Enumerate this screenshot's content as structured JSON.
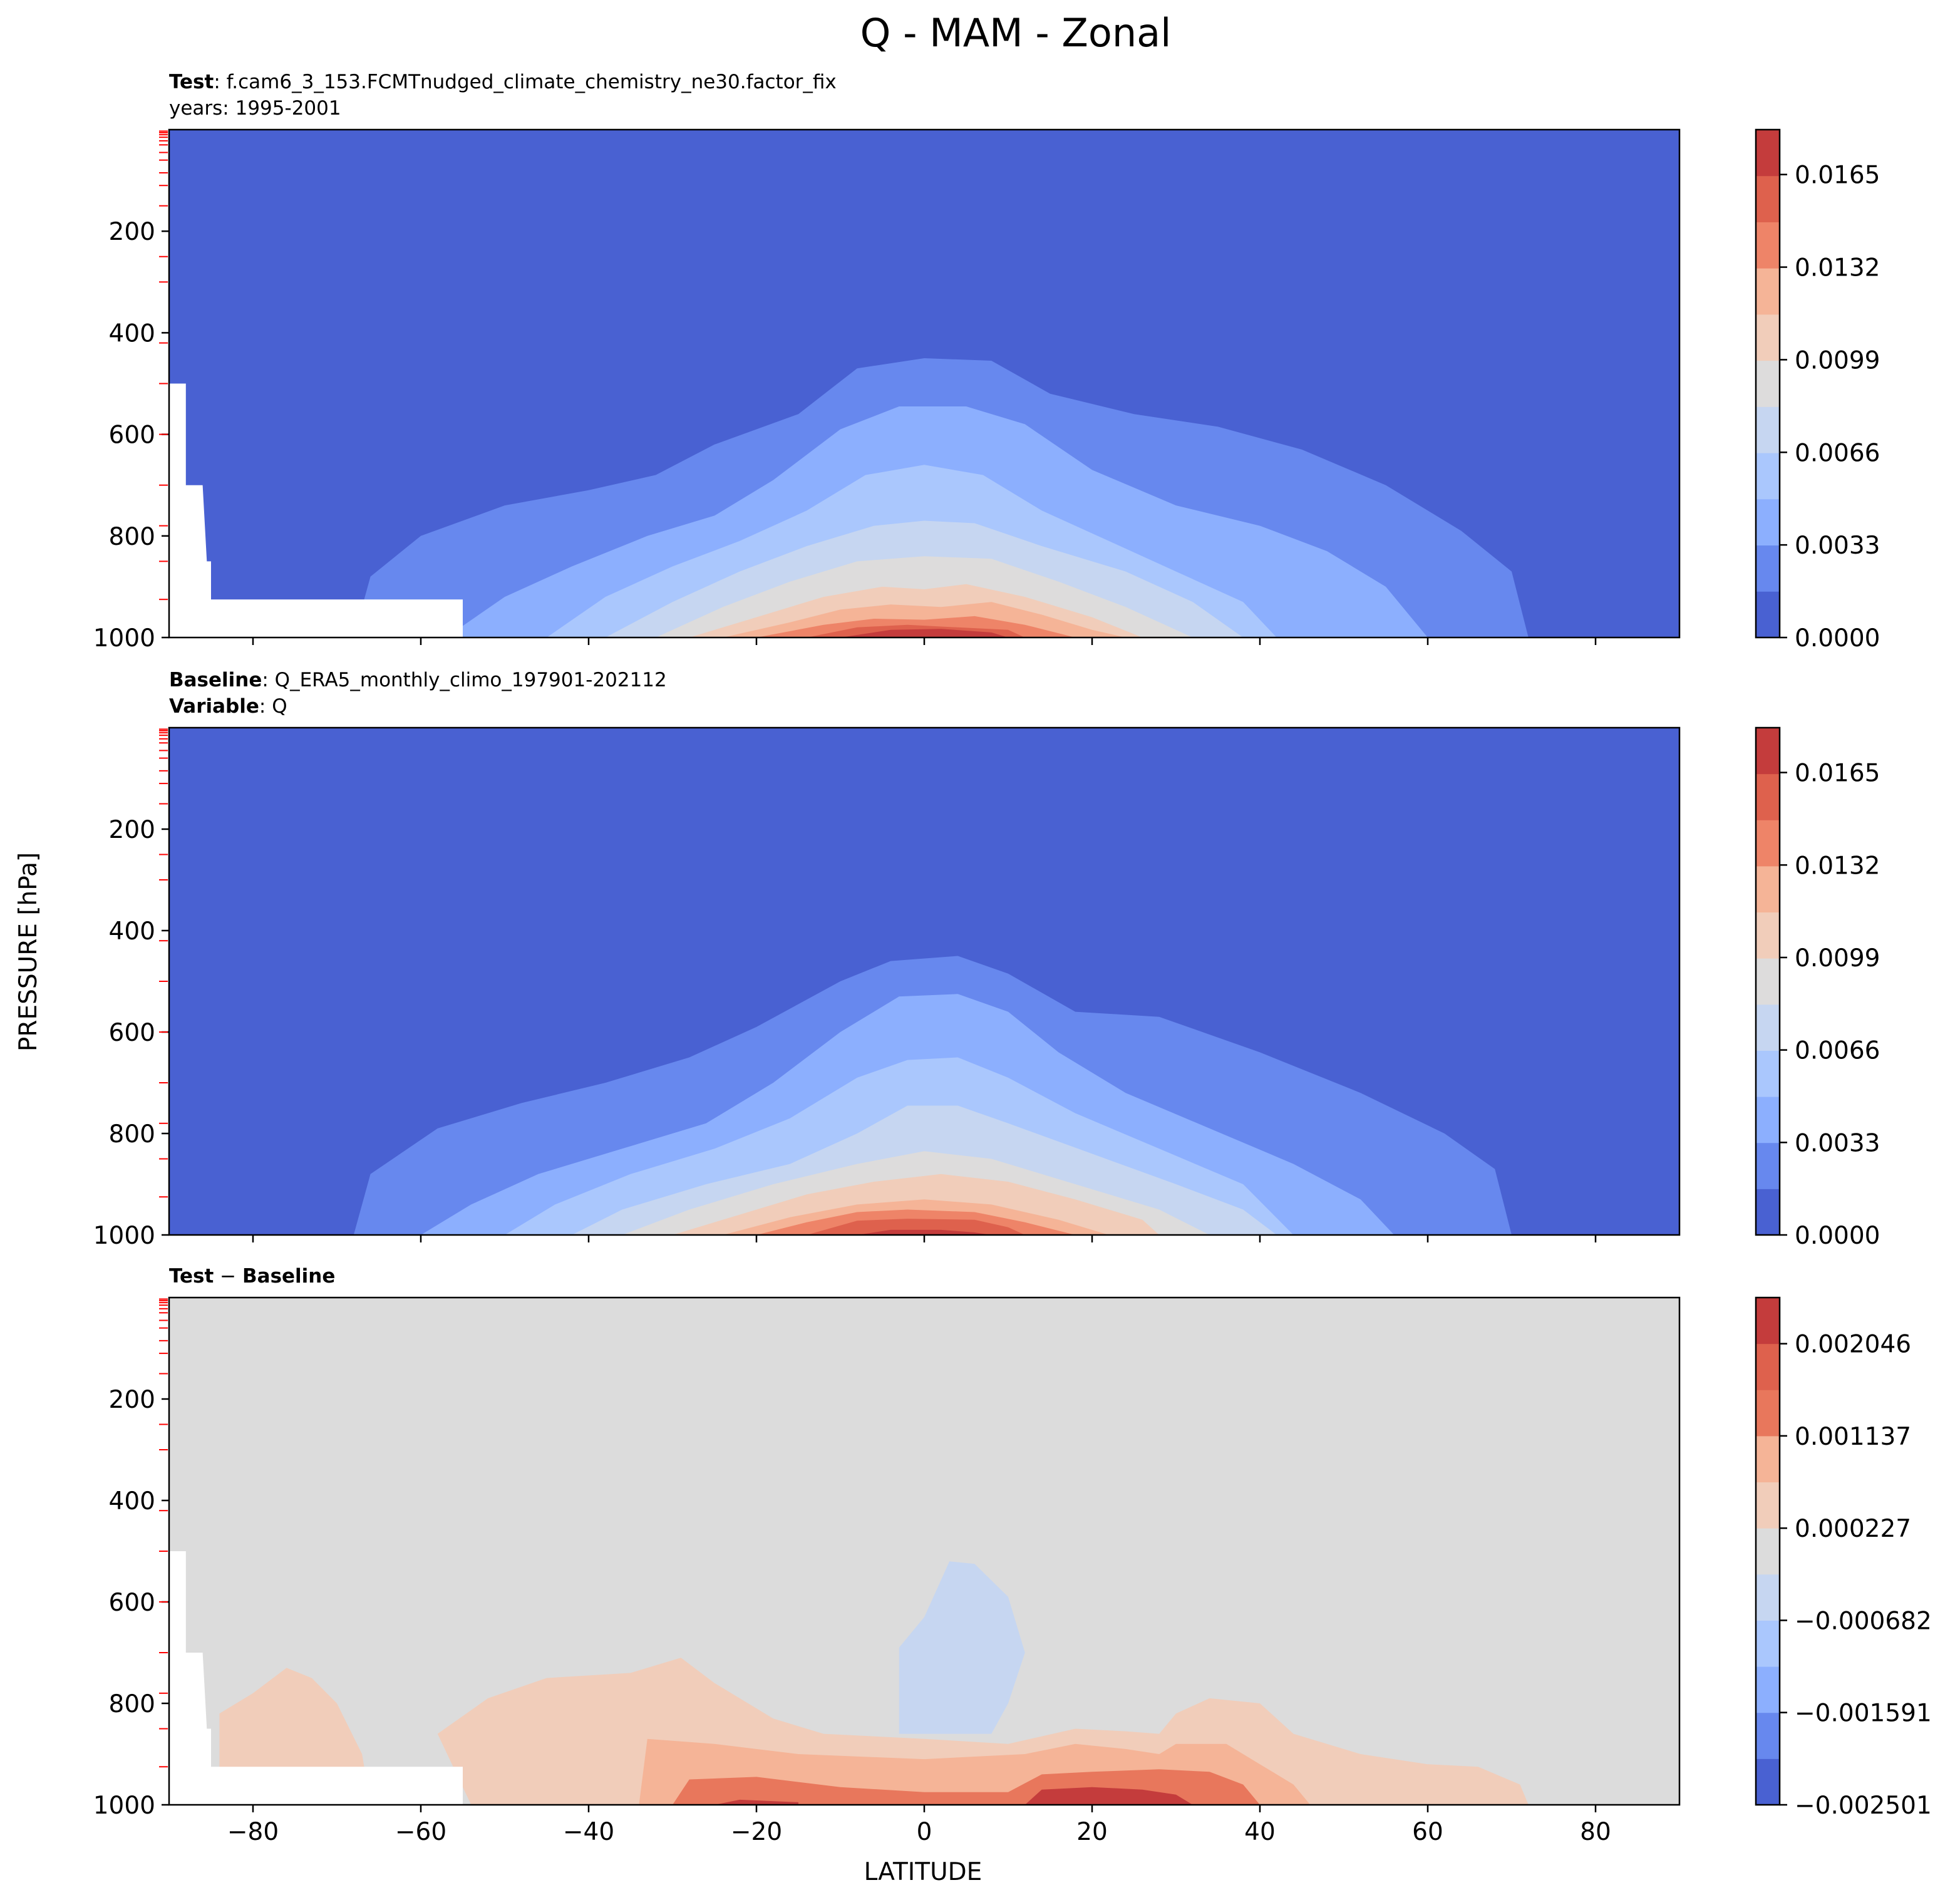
{
  "figure_title": "Q - MAM - Zonal",
  "chart_data": [
    {
      "type": "contourf",
      "panel": "test",
      "header_bold_1": "Test",
      "header_text_1": ": f.cam6_3_153.FCMTnudged_climate_chemistry_ne30.factor_fix",
      "header_text_2": "years: 1995-2001",
      "xlabel": "LATITUDE",
      "ylabel": "PRESSURE [hPa]",
      "xlim": [
        -90,
        90
      ],
      "ylim": [
        1000,
        0
      ],
      "x_ticks": [
        -80,
        -60,
        -40,
        -20,
        0,
        20,
        40,
        60,
        80
      ],
      "y_ticks": [
        200,
        400,
        600,
        800,
        1000
      ],
      "colorbar_range": [
        0.0,
        0.0181
      ],
      "colorbar_ticks": [
        "0.0000",
        "0.0033",
        "0.0066",
        "0.0099",
        "0.0132",
        "0.0165"
      ],
      "levels": 11,
      "colormap": "coolwarm",
      "max_value_approx": 0.0175,
      "max_location": {
        "latitude": 0,
        "pressure_hPa": 1000
      }
    },
    {
      "type": "contourf",
      "panel": "baseline",
      "header_bold_1": "Baseline",
      "header_text_1": ": Q_ERA5_monthly_climo_197901-202112",
      "header_bold_2": "Variable",
      "header_text_2": ": Q",
      "xlim": [
        -90,
        90
      ],
      "ylim": [
        1000,
        0
      ],
      "x_ticks": [
        -80,
        -60,
        -40,
        -20,
        0,
        20,
        40,
        60,
        80
      ],
      "y_ticks": [
        200,
        400,
        600,
        800,
        1000
      ],
      "colorbar_range": [
        0.0,
        0.0181
      ],
      "colorbar_ticks": [
        "0.0000",
        "0.0033",
        "0.0066",
        "0.0099",
        "0.0132",
        "0.0165"
      ],
      "levels": 11,
      "colormap": "coolwarm"
    },
    {
      "type": "contourf",
      "panel": "difference",
      "header_bold_1": "Test",
      "header_text_1": " − ",
      "header_bold_2": "Baseline",
      "xlim": [
        -90,
        90
      ],
      "ylim": [
        1000,
        0
      ],
      "x_ticks": [
        -80,
        -60,
        -40,
        -20,
        0,
        20,
        40,
        60,
        80
      ],
      "y_ticks": [
        200,
        400,
        600,
        800,
        1000
      ],
      "colorbar_range": [
        -0.002501,
        0.002501
      ],
      "colorbar_ticks": [
        "−0.002501",
        "−0.001591",
        "−0.000682",
        "0.000227",
        "0.001137",
        "0.002046"
      ],
      "levels": 11,
      "colormap": "coolwarm"
    }
  ],
  "colors": {
    "c0": "#4961d2",
    "c1": "#6788ee",
    "c2": "#8caffe",
    "c3": "#aac7fd",
    "c4": "#c6d6f1",
    "c5": "#dddcdc",
    "c6": "#f1cdba",
    "c7": "#f5b497",
    "c8": "#ee8468",
    "c9": "#de614d",
    "c10": "#c43c3c",
    "diff_neg1": "#c6d6f1",
    "diff_zero": "#dcdcdc",
    "diff_pos1": "#f1cdba",
    "diff_pos2": "#f5b497",
    "diff_pos3": "#e8775c",
    "diff_pos4": "#c43c3c",
    "level_tick": "#ff0000"
  }
}
